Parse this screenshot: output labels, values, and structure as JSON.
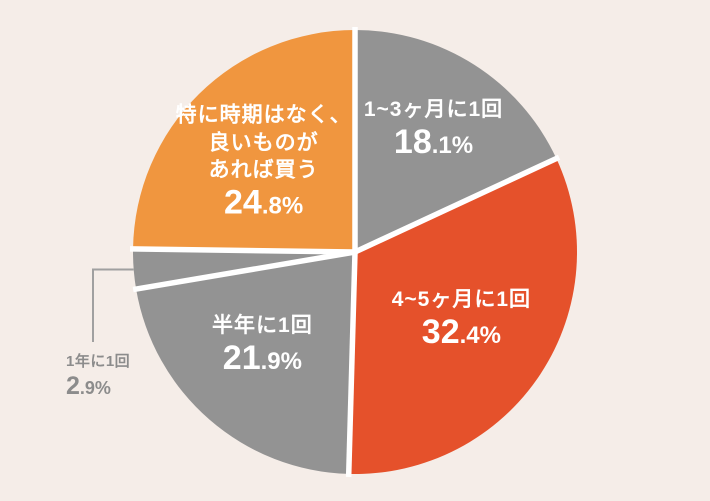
{
  "page": {
    "background_color": "#F5EDE8"
  },
  "chart_data": {
    "type": "pie",
    "title": "",
    "direction": "clockwise",
    "start_angle_deg": 0,
    "legend": "none",
    "separator_color": "#FFFFFF",
    "callout_line_color": "#A0A0A0",
    "segments": [
      {
        "label": "1~3ヶ月に1回",
        "label_lines": [
          "1~3ヶ月に1回"
        ],
        "value": 18.1,
        "display_pct": "18.1%",
        "color": "#939393",
        "text_color": "#FFFFFF",
        "label_position": "inside"
      },
      {
        "label": "4~5ヶ月に1回",
        "label_lines": [
          "4~5ヶ月に1回"
        ],
        "value": 32.4,
        "display_pct": "32.4%",
        "color": "#E5512B",
        "text_color": "#FFFFFF",
        "label_position": "inside"
      },
      {
        "label": "半年に1回",
        "label_lines": [
          "半年に1回"
        ],
        "value": 21.9,
        "display_pct": "21.9%",
        "color": "#939393",
        "text_color": "#FFFFFF",
        "label_position": "inside"
      },
      {
        "label": "1年に1回",
        "label_lines": [
          "1年に1回"
        ],
        "value": 2.9,
        "display_pct": "2.9%",
        "color": "#939393",
        "text_color": "#8C8C8C",
        "label_position": "outside-callout"
      },
      {
        "label": "特に時期はなく、良いものがあれば買う",
        "label_lines": [
          "特に時期はなく、",
          "良いものが",
          "あれば買う"
        ],
        "value": 24.8,
        "display_pct": "24.8%",
        "color": "#F0963F",
        "text_color": "#FFFFFF",
        "label_position": "inside"
      }
    ]
  }
}
